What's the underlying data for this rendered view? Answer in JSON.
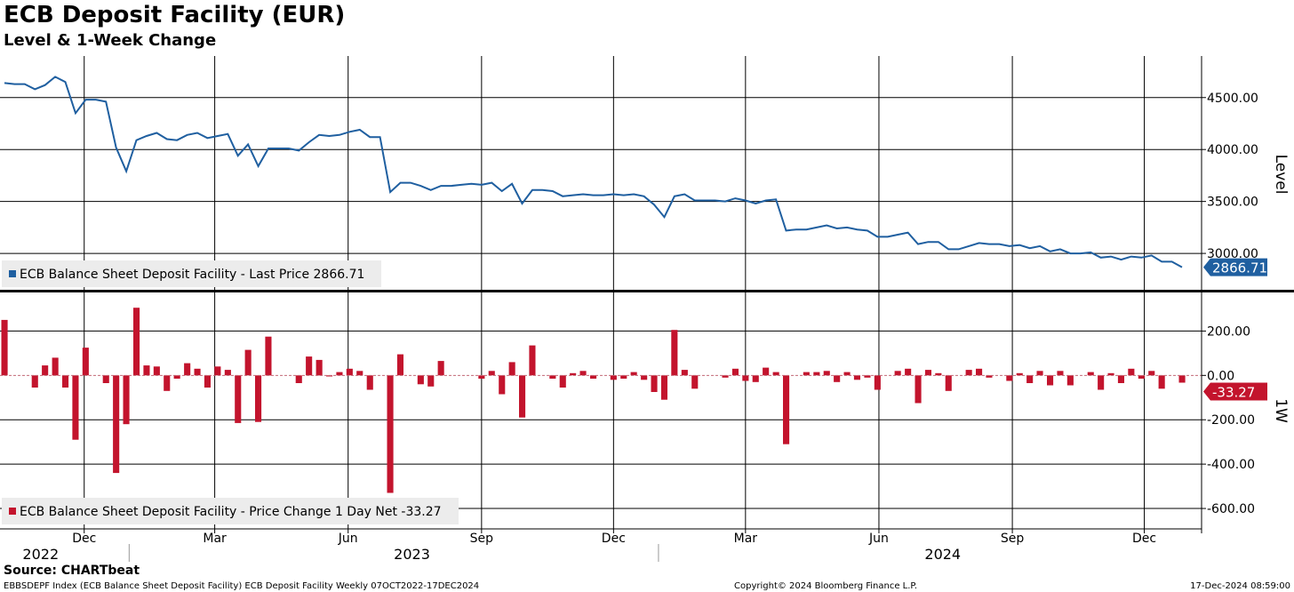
{
  "title": "ECB Deposit Facility (EUR)",
  "subtitle": "Level & 1-Week Change",
  "source": "Source: CHARTbeat",
  "footer": {
    "left": "EBBSDEPF Index (ECB Balance Sheet Deposit Facility) ECB Deposit Facility  Weekly 07OCT2022-17DEC2024",
    "center": "Copyright© 2024 Bloomberg Finance L.P.",
    "right": "17-Dec-2024 08:59:00"
  },
  "colors": {
    "level_line": "#1f5fa0",
    "change_bar": "#c3142d",
    "grid": "#000000",
    "legend_bg": "#ececec"
  },
  "chart_data": [
    {
      "type": "line",
      "ylabel": "Level",
      "ylim": [
        2650,
        4900
      ],
      "yticks": [
        "3000.00",
        "3500.00",
        "4000.00",
        "4500.00"
      ],
      "last_value_label": "2866.71",
      "legend": "ECB Balance Sheet Deposit Facility - Last Price 2866.71",
      "start_date": "2022-10-07",
      "frequency": "weekly",
      "values": [
        4640,
        4630,
        4630,
        4580,
        4620,
        4700,
        4650,
        4350,
        4480,
        4480,
        4460,
        4020,
        3790,
        4090,
        4130,
        4160,
        4100,
        4090,
        4140,
        4160,
        4110,
        4130,
        4150,
        3940,
        4050,
        3840,
        4010,
        4010,
        4010,
        3990,
        4070,
        4140,
        4130,
        4140,
        4170,
        4190,
        4120,
        4120,
        3590,
        3680,
        3680,
        3650,
        3610,
        3650,
        3650,
        3660,
        3670,
        3660,
        3680,
        3600,
        3670,
        3480,
        3610,
        3610,
        3600,
        3550,
        3560,
        3570,
        3560,
        3560,
        3570,
        3560,
        3570,
        3550,
        3470,
        3350,
        3550,
        3570,
        3510,
        3510,
        3510,
        3500,
        3530,
        3510,
        3480,
        3510,
        3520,
        3220,
        3230,
        3230,
        3250,
        3270,
        3240,
        3250,
        3230,
        3220,
        3160,
        3160,
        3180,
        3200,
        3090,
        3110,
        3110,
        3040,
        3040,
        3070,
        3100,
        3090,
        3090,
        3070,
        3080,
        3050,
        3070,
        3020,
        3040,
        3000,
        3000,
        3010,
        2960,
        2970,
        2940,
        2970,
        2960,
        2980,
        2920,
        2920,
        2867
      ]
    },
    {
      "type": "bar",
      "ylabel": "1W",
      "ylim": [
        -680,
        370
      ],
      "yticks": [
        "-600.00",
        "-400.00",
        "-200.00",
        "200.00"
      ],
      "zero_tick_label": "0.00",
      "last_value_label": "-33.27",
      "legend": "ECB Balance Sheet Deposit Facility - Price Change 1 Day Net -33.27",
      "start_date": "2022-10-07",
      "frequency": "weekly",
      "values": [
        250,
        0,
        0,
        -55,
        45,
        80,
        -55,
        -290,
        125,
        0,
        -35,
        -440,
        -220,
        305,
        45,
        40,
        -70,
        -15,
        55,
        30,
        -55,
        40,
        25,
        -215,
        115,
        -210,
        175,
        0,
        0,
        -35,
        85,
        70,
        -5,
        15,
        30,
        20,
        -65,
        0,
        -530,
        95,
        0,
        -40,
        -50,
        65,
        0,
        0,
        0,
        -15,
        20,
        -85,
        60,
        -190,
        135,
        0,
        -15,
        -55,
        10,
        20,
        -15,
        0,
        -20,
        -15,
        15,
        -20,
        -75,
        -110,
        205,
        25,
        -60,
        0,
        0,
        -10,
        30,
        -25,
        -30,
        35,
        15,
        -310,
        0,
        15,
        15,
        20,
        -30,
        15,
        -20,
        -10,
        -65,
        0,
        20,
        30,
        -125,
        25,
        10,
        -70,
        0,
        25,
        30,
        -10,
        0,
        -25,
        10,
        -35,
        20,
        -45,
        20,
        -45,
        0,
        15,
        -65,
        10,
        -35,
        30,
        -15,
        20,
        -60,
        0,
        -33
      ]
    }
  ],
  "x_axis": {
    "months": [
      {
        "label": "Dec",
        "date": "2022-12-01"
      },
      {
        "label": "Mar",
        "date": "2023-03-01"
      },
      {
        "label": "Jun",
        "date": "2023-06-01"
      },
      {
        "label": "Sep",
        "date": "2023-09-01"
      },
      {
        "label": "Dec",
        "date": "2023-12-01"
      },
      {
        "label": "Mar",
        "date": "2024-03-01"
      },
      {
        "label": "Jun",
        "date": "2024-06-01"
      },
      {
        "label": "Sep",
        "date": "2024-09-01"
      },
      {
        "label": "Dec",
        "date": "2024-12-01"
      }
    ],
    "years": [
      {
        "label": "2022",
        "date": "2022-11-01"
      },
      {
        "label": "2023",
        "date": "2023-07-15"
      },
      {
        "label": "2024",
        "date": "2024-07-15"
      }
    ]
  }
}
